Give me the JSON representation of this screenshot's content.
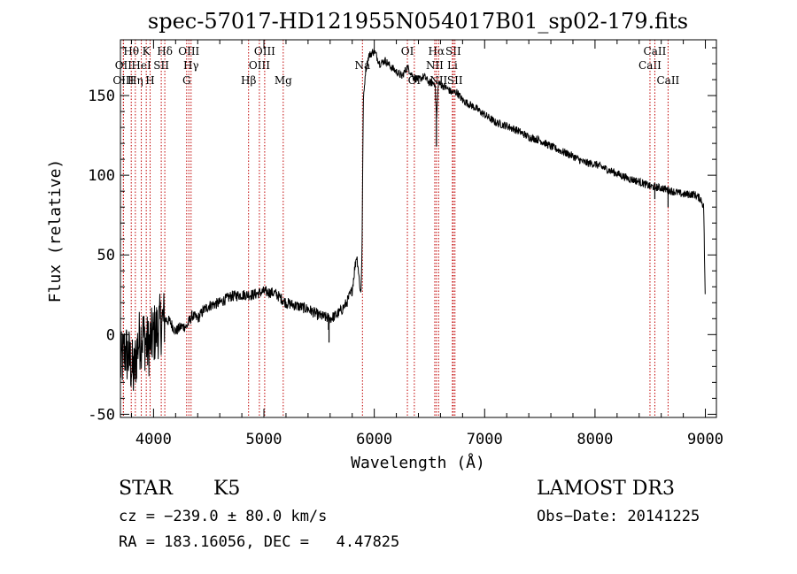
{
  "chart_data": {
    "type": "line",
    "title": "spec-57017-HD121955N054017B01_sp02-179.fits",
    "xlabel": "Wavelength (Å)",
    "ylabel": "Flux (relative)",
    "xlim": [
      3700,
      9100
    ],
    "ylim": [
      -52,
      185
    ],
    "xticks": [
      4000,
      5000,
      6000,
      7000,
      8000,
      9000
    ],
    "yticks": [
      -50,
      0,
      50,
      100,
      150
    ],
    "grid": false,
    "series": [
      {
        "name": "spectrum",
        "x": [
          3700,
          3740,
          3780,
          3820,
          3860,
          3900,
          3950,
          4000,
          4050,
          4100,
          4150,
          4200,
          4250,
          4300,
          4350,
          4400,
          4450,
          4500,
          4600,
          4700,
          4800,
          4900,
          5000,
          5100,
          5200,
          5300,
          5400,
          5500,
          5600,
          5650,
          5700,
          5750,
          5800,
          5820,
          5840,
          5850,
          5870,
          5880,
          5890,
          5900,
          5920,
          5950,
          6000,
          6050,
          6100,
          6150,
          6200,
          6250,
          6300,
          6350,
          6400,
          6450,
          6500,
          6550,
          6565,
          6580,
          6600,
          6650,
          6700,
          6750,
          6800,
          6900,
          7000,
          7100,
          7200,
          7300,
          7400,
          7500,
          7600,
          7700,
          7800,
          7900,
          8000,
          8100,
          8200,
          8300,
          8400,
          8500,
          8600,
          8700,
          8800,
          8900,
          8960,
          8985,
          9000
        ],
        "y": [
          -20,
          -10,
          -15,
          -25,
          -5,
          0,
          -8,
          0,
          5,
          10,
          8,
          2,
          5,
          5,
          12,
          10,
          15,
          18,
          20,
          24,
          25,
          25,
          27,
          26,
          20,
          18,
          16,
          12,
          10,
          12,
          15,
          20,
          28,
          40,
          50,
          45,
          30,
          25,
          60,
          145,
          165,
          175,
          178,
          170,
          172,
          168,
          165,
          162,
          168,
          162,
          160,
          162,
          158,
          158,
          135,
          158,
          157,
          155,
          152,
          152,
          147,
          143,
          138,
          133,
          131,
          128,
          124,
          122,
          118,
          115,
          112,
          108,
          107,
          104,
          101,
          98,
          96,
          93,
          92,
          90,
          88,
          88,
          85,
          80,
          15
        ]
      }
    ],
    "line_markers": [
      {
        "label": "Hθ",
        "wl": 3798,
        "row": 1
      },
      {
        "label": "OII",
        "wl": 3727,
        "row": 2
      },
      {
        "label": "OIII",
        "wl": 3727,
        "row": 3
      },
      {
        "label": "Hη",
        "wl": 3835,
        "row": 3
      },
      {
        "label": "HeI",
        "wl": 3889,
        "row": 2
      },
      {
        "label": "K",
        "wl": 3934,
        "row": 1
      },
      {
        "label": "H",
        "wl": 3969,
        "row": 3
      },
      {
        "label": "SII",
        "wl": 4070,
        "row": 2
      },
      {
        "label": "Hδ",
        "wl": 4102,
        "row": 1
      },
      {
        "label": "OIII",
        "wl": 4320,
        "row": 1
      },
      {
        "label": "Hγ",
        "wl": 4340,
        "row": 2
      },
      {
        "label": "G",
        "wl": 4300,
        "row": 3
      },
      {
        "label": "Hβ",
        "wl": 4861,
        "row": 3
      },
      {
        "label": "OIII",
        "wl": 4959,
        "row": 2
      },
      {
        "label": "OIII",
        "wl": 5007,
        "row": 1
      },
      {
        "label": "Mg",
        "wl": 5175,
        "row": 3
      },
      {
        "label": "Na",
        "wl": 5893,
        "row": 2
      },
      {
        "label": "OI",
        "wl": 6300,
        "row": 1
      },
      {
        "label": "OI",
        "wl": 6363,
        "row": 3
      },
      {
        "label": "Hα",
        "wl": 6563,
        "row": 1
      },
      {
        "label": "NII",
        "wl": 6548,
        "row": 2
      },
      {
        "label": "NII",
        "wl": 6583,
        "row": 3
      },
      {
        "label": "SII",
        "wl": 6716,
        "row": 1
      },
      {
        "label": "Li",
        "wl": 6708,
        "row": 2
      },
      {
        "label": "SII",
        "wl": 6731,
        "row": 3
      },
      {
        "label": "CaII",
        "wl": 8498,
        "row": 2
      },
      {
        "label": "CaII",
        "wl": 8542,
        "row": 1
      },
      {
        "label": "CaII",
        "wl": 8662,
        "row": 3
      }
    ]
  },
  "info": {
    "object_class": "STAR",
    "subclass": "K5",
    "survey": "LAMOST DR3",
    "cz": "cz = −239.0 ± 80.0 km/s",
    "obs_date": "Obs−Date: 20141225",
    "coords": "RA = 183.16056, DEC =   4.47825"
  },
  "colors": {
    "line_marker": "#c00000",
    "spectrum": "#000000"
  }
}
